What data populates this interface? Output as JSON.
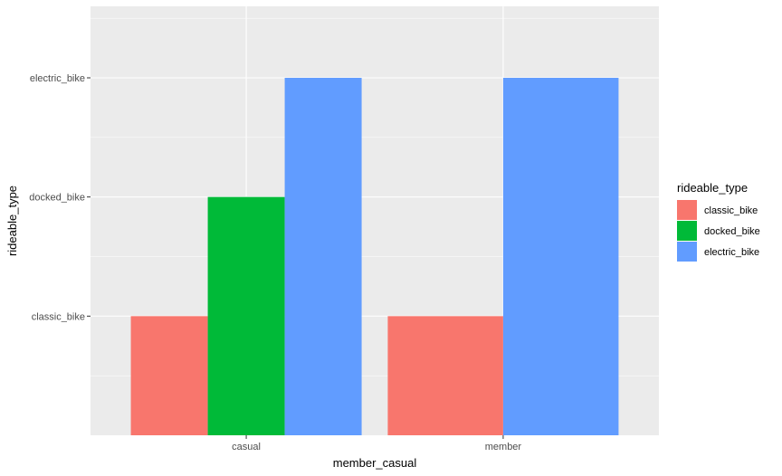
{
  "chart_data": {
    "type": "bar",
    "x_title": "member_casual",
    "y_title": "rideable_type",
    "categories": [
      "casual",
      "member"
    ],
    "y_levels": [
      "classic_bike",
      "docked_bike",
      "electric_bike"
    ],
    "y_range": [
      0,
      3.6
    ],
    "grid": true,
    "legend_position": "right",
    "legend_title": "rideable_type",
    "series": [
      {
        "name": "classic_bike",
        "color": "#F8766D",
        "values": [
          1,
          1
        ]
      },
      {
        "name": "docked_bike",
        "color": "#00BA38",
        "values": [
          2,
          null
        ]
      },
      {
        "name": "electric_bike",
        "color": "#619CFF",
        "values": [
          3,
          3
        ]
      }
    ],
    "panel_background": "#EBEBEB",
    "gridline_color": "#FFFFFF"
  }
}
